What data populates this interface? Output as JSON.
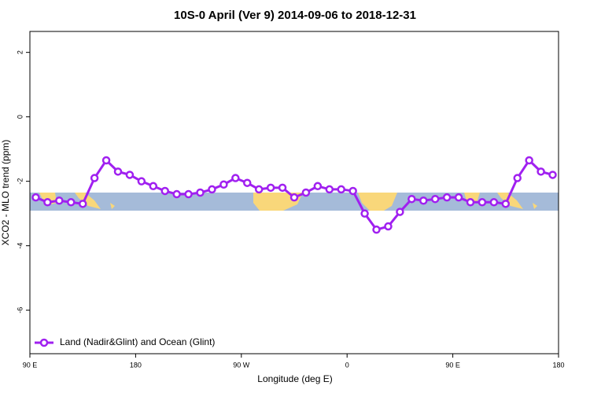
{
  "chart_data": {
    "type": "line",
    "title": "10S-0 April (Ver 9)   2014-09-06 to 2018-12-31",
    "x_label": "Longitude (deg E)",
    "y_label": "XCO2 - MLO trend (ppm)",
    "x": [
      95,
      105,
      115,
      125,
      135,
      145,
      155,
      165,
      175,
      185,
      195,
      205,
      215,
      225,
      235,
      245,
      255,
      265,
      275,
      285,
      295,
      305,
      315,
      325,
      335,
      345,
      355,
      365,
      375,
      385,
      395,
      405,
      415,
      425,
      435,
      445,
      455,
      465,
      475,
      485,
      495,
      505,
      515,
      525,
      535
    ],
    "series": [
      {
        "name": "Land (Nadir&Glint) and Ocean (Glint)",
        "color": "#a020f0",
        "values": [
          -2.5,
          -2.65,
          -2.6,
          -2.65,
          -2.7,
          -1.9,
          -1.35,
          -1.7,
          -1.8,
          -2.0,
          -2.15,
          -2.3,
          -2.4,
          -2.4,
          -2.35,
          -2.25,
          -2.1,
          -1.9,
          -2.05,
          -2.25,
          -2.2,
          -2.2,
          -2.5,
          -2.35,
          -2.15,
          -2.25,
          -2.25,
          -2.3,
          -3.0,
          -3.5,
          -3.4,
          -2.95,
          -2.55,
          -2.6,
          -2.55,
          -2.5,
          -2.5,
          -2.65,
          -2.65,
          -2.65,
          -2.7,
          -1.9,
          -1.35,
          -1.7,
          -1.8
        ]
      }
    ],
    "xlim": [
      90,
      540
    ],
    "xticks": [
      {
        "value": 90,
        "label": "90 E"
      },
      180,
      {
        "value": 270,
        "label": "90 W"
      },
      {
        "value": 360,
        "label": "0"
      },
      {
        "value": 450,
        "label": "90 E"
      },
      {
        "value": 540,
        "label": "180"
      }
    ],
    "ylim": [
      -7.35,
      2.65
    ],
    "yticks": [
      2,
      0,
      -2,
      -4,
      -6
    ],
    "legend": "bottom-left"
  }
}
